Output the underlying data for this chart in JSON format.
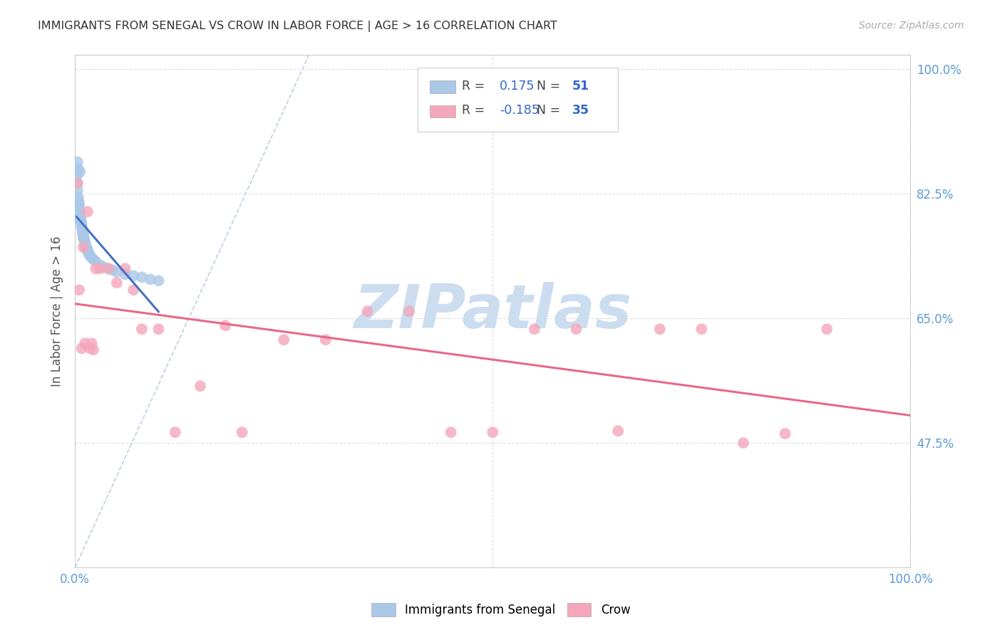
{
  "title": "IMMIGRANTS FROM SENEGAL VS CROW IN LABOR FORCE | AGE > 16 CORRELATION CHART",
  "source": "Source: ZipAtlas.com",
  "ylabel": "In Labor Force | Age > 16",
  "xlim": [
    0.0,
    1.0
  ],
  "ylim": [
    0.3,
    1.02
  ],
  "ytick_positions": [
    0.475,
    0.65,
    0.825,
    1.0
  ],
  "ytick_labels": [
    "47.5%",
    "65.0%",
    "82.5%",
    "100.0%"
  ],
  "xtick_positions": [
    0.0,
    0.5,
    1.0
  ],
  "xtick_labels": [
    "0.0%",
    "",
    "100.0%"
  ],
  "series": [
    {
      "name": "Immigrants from Senegal",
      "R": 0.175,
      "N": 51,
      "color_scatter": "#aac8e8",
      "color_line": "#4472c4",
      "color_dashed": "#a0b8d8",
      "x": [
        0.002,
        0.003,
        0.003,
        0.004,
        0.004,
        0.005,
        0.005,
        0.005,
        0.006,
        0.006,
        0.006,
        0.007,
        0.007,
        0.007,
        0.008,
        0.008,
        0.008,
        0.009,
        0.009,
        0.009,
        0.01,
        0.01,
        0.01,
        0.011,
        0.011,
        0.012,
        0.012,
        0.013,
        0.013,
        0.014,
        0.015,
        0.015,
        0.016,
        0.017,
        0.018,
        0.02,
        0.022,
        0.025,
        0.03,
        0.035,
        0.04,
        0.045,
        0.05,
        0.06,
        0.07,
        0.08,
        0.09,
        0.1,
        0.003,
        0.004,
        0.006
      ],
      "y": [
        0.85,
        0.84,
        0.83,
        0.82,
        0.815,
        0.812,
        0.808,
        0.802,
        0.8,
        0.797,
        0.793,
        0.79,
        0.788,
        0.785,
        0.783,
        0.78,
        0.778,
        0.775,
        0.773,
        0.77,
        0.768,
        0.765,
        0.763,
        0.762,
        0.76,
        0.758,
        0.755,
        0.753,
        0.75,
        0.748,
        0.747,
        0.745,
        0.743,
        0.74,
        0.738,
        0.735,
        0.733,
        0.73,
        0.725,
        0.722,
        0.72,
        0.718,
        0.715,
        0.712,
        0.71,
        0.708,
        0.705,
        0.703,
        0.87,
        0.86,
        0.856
      ]
    },
    {
      "name": "Crow",
      "R": -0.185,
      "N": 35,
      "color_scatter": "#f4a7bb",
      "color_line": "#e8688a",
      "x": [
        0.003,
        0.005,
        0.01,
        0.015,
        0.02,
        0.025,
        0.03,
        0.04,
        0.05,
        0.06,
        0.07,
        0.08,
        0.1,
        0.12,
        0.15,
        0.18,
        0.2,
        0.25,
        0.3,
        0.35,
        0.4,
        0.45,
        0.5,
        0.55,
        0.6,
        0.65,
        0.7,
        0.75,
        0.8,
        0.85,
        0.9,
        0.008,
        0.012,
        0.018,
        0.022
      ],
      "y": [
        0.84,
        0.69,
        0.75,
        0.8,
        0.615,
        0.72,
        0.72,
        0.72,
        0.7,
        0.72,
        0.69,
        0.635,
        0.635,
        0.49,
        0.555,
        0.64,
        0.49,
        0.62,
        0.62,
        0.66,
        0.66,
        0.49,
        0.49,
        0.635,
        0.635,
        0.492,
        0.635,
        0.635,
        0.475,
        0.488,
        0.635,
        0.608,
        0.615,
        0.608,
        0.606
      ]
    }
  ],
  "background_color": "#ffffff",
  "grid_color": "#dddddd",
  "title_color": "#333333",
  "source_color": "#aaaaaa",
  "watermark_text": "ZIPatlas",
  "watermark_color": "#ccddf0",
  "axis_label_color": "#5b9bd5"
}
